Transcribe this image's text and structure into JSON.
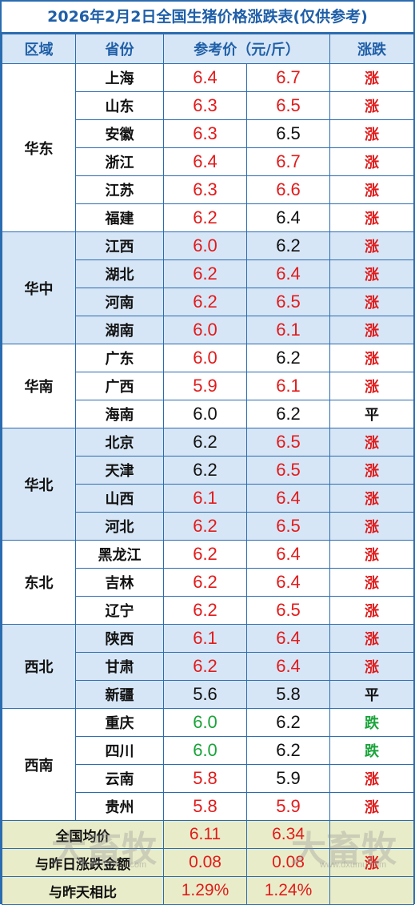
{
  "title": "2026年2月2日全国生猪价格涨跌表(仅供参考)",
  "headers": {
    "region": "区域",
    "province": "省份",
    "price": "参考价（元/斤）",
    "trend": "涨跌"
  },
  "colors": {
    "border": "#2b6cb0",
    "header_bg": "#d7e6f6",
    "summary_bg": "#e9ecc8",
    "up": "#e11b1b",
    "down": "#1aa33a",
    "flat": "#111111"
  },
  "groups": [
    {
      "region": "华东",
      "rows": [
        {
          "province": "上海",
          "p1": "6.4",
          "p1_color": "red",
          "p2": "6.7",
          "p2_color": "red",
          "trend": "涨",
          "trend_color": "red"
        },
        {
          "province": "山东",
          "p1": "6.3",
          "p1_color": "red",
          "p2": "6.5",
          "p2_color": "red",
          "trend": "涨",
          "trend_color": "red"
        },
        {
          "province": "安徽",
          "p1": "6.3",
          "p1_color": "red",
          "p2": "6.5",
          "p2_color": "black",
          "trend": "涨",
          "trend_color": "red"
        },
        {
          "province": "浙江",
          "p1": "6.4",
          "p1_color": "red",
          "p2": "6.7",
          "p2_color": "red",
          "trend": "涨",
          "trend_color": "red"
        },
        {
          "province": "江苏",
          "p1": "6.3",
          "p1_color": "red",
          "p2": "6.6",
          "p2_color": "red",
          "trend": "涨",
          "trend_color": "red"
        },
        {
          "province": "福建",
          "p1": "6.2",
          "p1_color": "red",
          "p2": "6.4",
          "p2_color": "black",
          "trend": "涨",
          "trend_color": "red"
        }
      ]
    },
    {
      "region": "华中",
      "rows": [
        {
          "province": "江西",
          "p1": "6.0",
          "p1_color": "red",
          "p2": "6.2",
          "p2_color": "black",
          "trend": "涨",
          "trend_color": "red"
        },
        {
          "province": "湖北",
          "p1": "6.2",
          "p1_color": "red",
          "p2": "6.4",
          "p2_color": "red",
          "trend": "涨",
          "trend_color": "red"
        },
        {
          "province": "河南",
          "p1": "6.2",
          "p1_color": "red",
          "p2": "6.5",
          "p2_color": "red",
          "trend": "涨",
          "trend_color": "red"
        },
        {
          "province": "湖南",
          "p1": "6.0",
          "p1_color": "red",
          "p2": "6.1",
          "p2_color": "red",
          "trend": "涨",
          "trend_color": "red"
        }
      ]
    },
    {
      "region": "华南",
      "rows": [
        {
          "province": "广东",
          "p1": "6.0",
          "p1_color": "red",
          "p2": "6.2",
          "p2_color": "black",
          "trend": "涨",
          "trend_color": "red"
        },
        {
          "province": "广西",
          "p1": "5.9",
          "p1_color": "red",
          "p2": "6.1",
          "p2_color": "red",
          "trend": "涨",
          "trend_color": "red"
        },
        {
          "province": "海南",
          "p1": "6.0",
          "p1_color": "black",
          "p2": "6.2",
          "p2_color": "black",
          "trend": "平",
          "trend_color": "black"
        }
      ]
    },
    {
      "region": "华北",
      "rows": [
        {
          "province": "北京",
          "p1": "6.2",
          "p1_color": "black",
          "p2": "6.5",
          "p2_color": "red",
          "trend": "涨",
          "trend_color": "red"
        },
        {
          "province": "天津",
          "p1": "6.2",
          "p1_color": "black",
          "p2": "6.5",
          "p2_color": "red",
          "trend": "涨",
          "trend_color": "red"
        },
        {
          "province": "山西",
          "p1": "6.1",
          "p1_color": "red",
          "p2": "6.4",
          "p2_color": "red",
          "trend": "涨",
          "trend_color": "red"
        },
        {
          "province": "河北",
          "p1": "6.2",
          "p1_color": "red",
          "p2": "6.5",
          "p2_color": "red",
          "trend": "涨",
          "trend_color": "red"
        }
      ]
    },
    {
      "region": "东北",
      "rows": [
        {
          "province": "黑龙江",
          "p1": "6.2",
          "p1_color": "red",
          "p2": "6.4",
          "p2_color": "red",
          "trend": "涨",
          "trend_color": "red"
        },
        {
          "province": "吉林",
          "p1": "6.2",
          "p1_color": "red",
          "p2": "6.4",
          "p2_color": "red",
          "trend": "涨",
          "trend_color": "red"
        },
        {
          "province": "辽宁",
          "p1": "6.2",
          "p1_color": "red",
          "p2": "6.5",
          "p2_color": "red",
          "trend": "涨",
          "trend_color": "red"
        }
      ]
    },
    {
      "region": "西北",
      "rows": [
        {
          "province": "陕西",
          "p1": "6.1",
          "p1_color": "red",
          "p2": "6.4",
          "p2_color": "red",
          "trend": "涨",
          "trend_color": "red"
        },
        {
          "province": "甘肃",
          "p1": "6.2",
          "p1_color": "red",
          "p2": "6.4",
          "p2_color": "red",
          "trend": "涨",
          "trend_color": "red"
        },
        {
          "province": "新疆",
          "p1": "5.6",
          "p1_color": "black",
          "p2": "5.8",
          "p2_color": "black",
          "trend": "平",
          "trend_color": "black"
        }
      ]
    },
    {
      "region": "西南",
      "rows": [
        {
          "province": "重庆",
          "p1": "6.0",
          "p1_color": "green",
          "p2": "6.2",
          "p2_color": "black",
          "trend": "跌",
          "trend_color": "green"
        },
        {
          "province": "四川",
          "p1": "6.0",
          "p1_color": "green",
          "p2": "6.2",
          "p2_color": "black",
          "trend": "跌",
          "trend_color": "green"
        },
        {
          "province": "云南",
          "p1": "5.8",
          "p1_color": "red",
          "p2": "5.9",
          "p2_color": "black",
          "trend": "涨",
          "trend_color": "red"
        },
        {
          "province": "贵州",
          "p1": "5.8",
          "p1_color": "red",
          "p2": "5.9",
          "p2_color": "red",
          "trend": "涨",
          "trend_color": "red"
        }
      ]
    }
  ],
  "summary": [
    {
      "label": "全国均价",
      "v1": "6.11",
      "v2": "6.34",
      "trend": ""
    },
    {
      "label": "与昨日涨跌金额",
      "v1": "0.08",
      "v2": "0.08",
      "trend": "涨"
    },
    {
      "label": "与昨天相比",
      "v1": "1.29%",
      "v2": "1.24%",
      "trend": ""
    }
  ],
  "watermark": {
    "text": "大畜牧",
    "url": "www.dxumu.com"
  }
}
